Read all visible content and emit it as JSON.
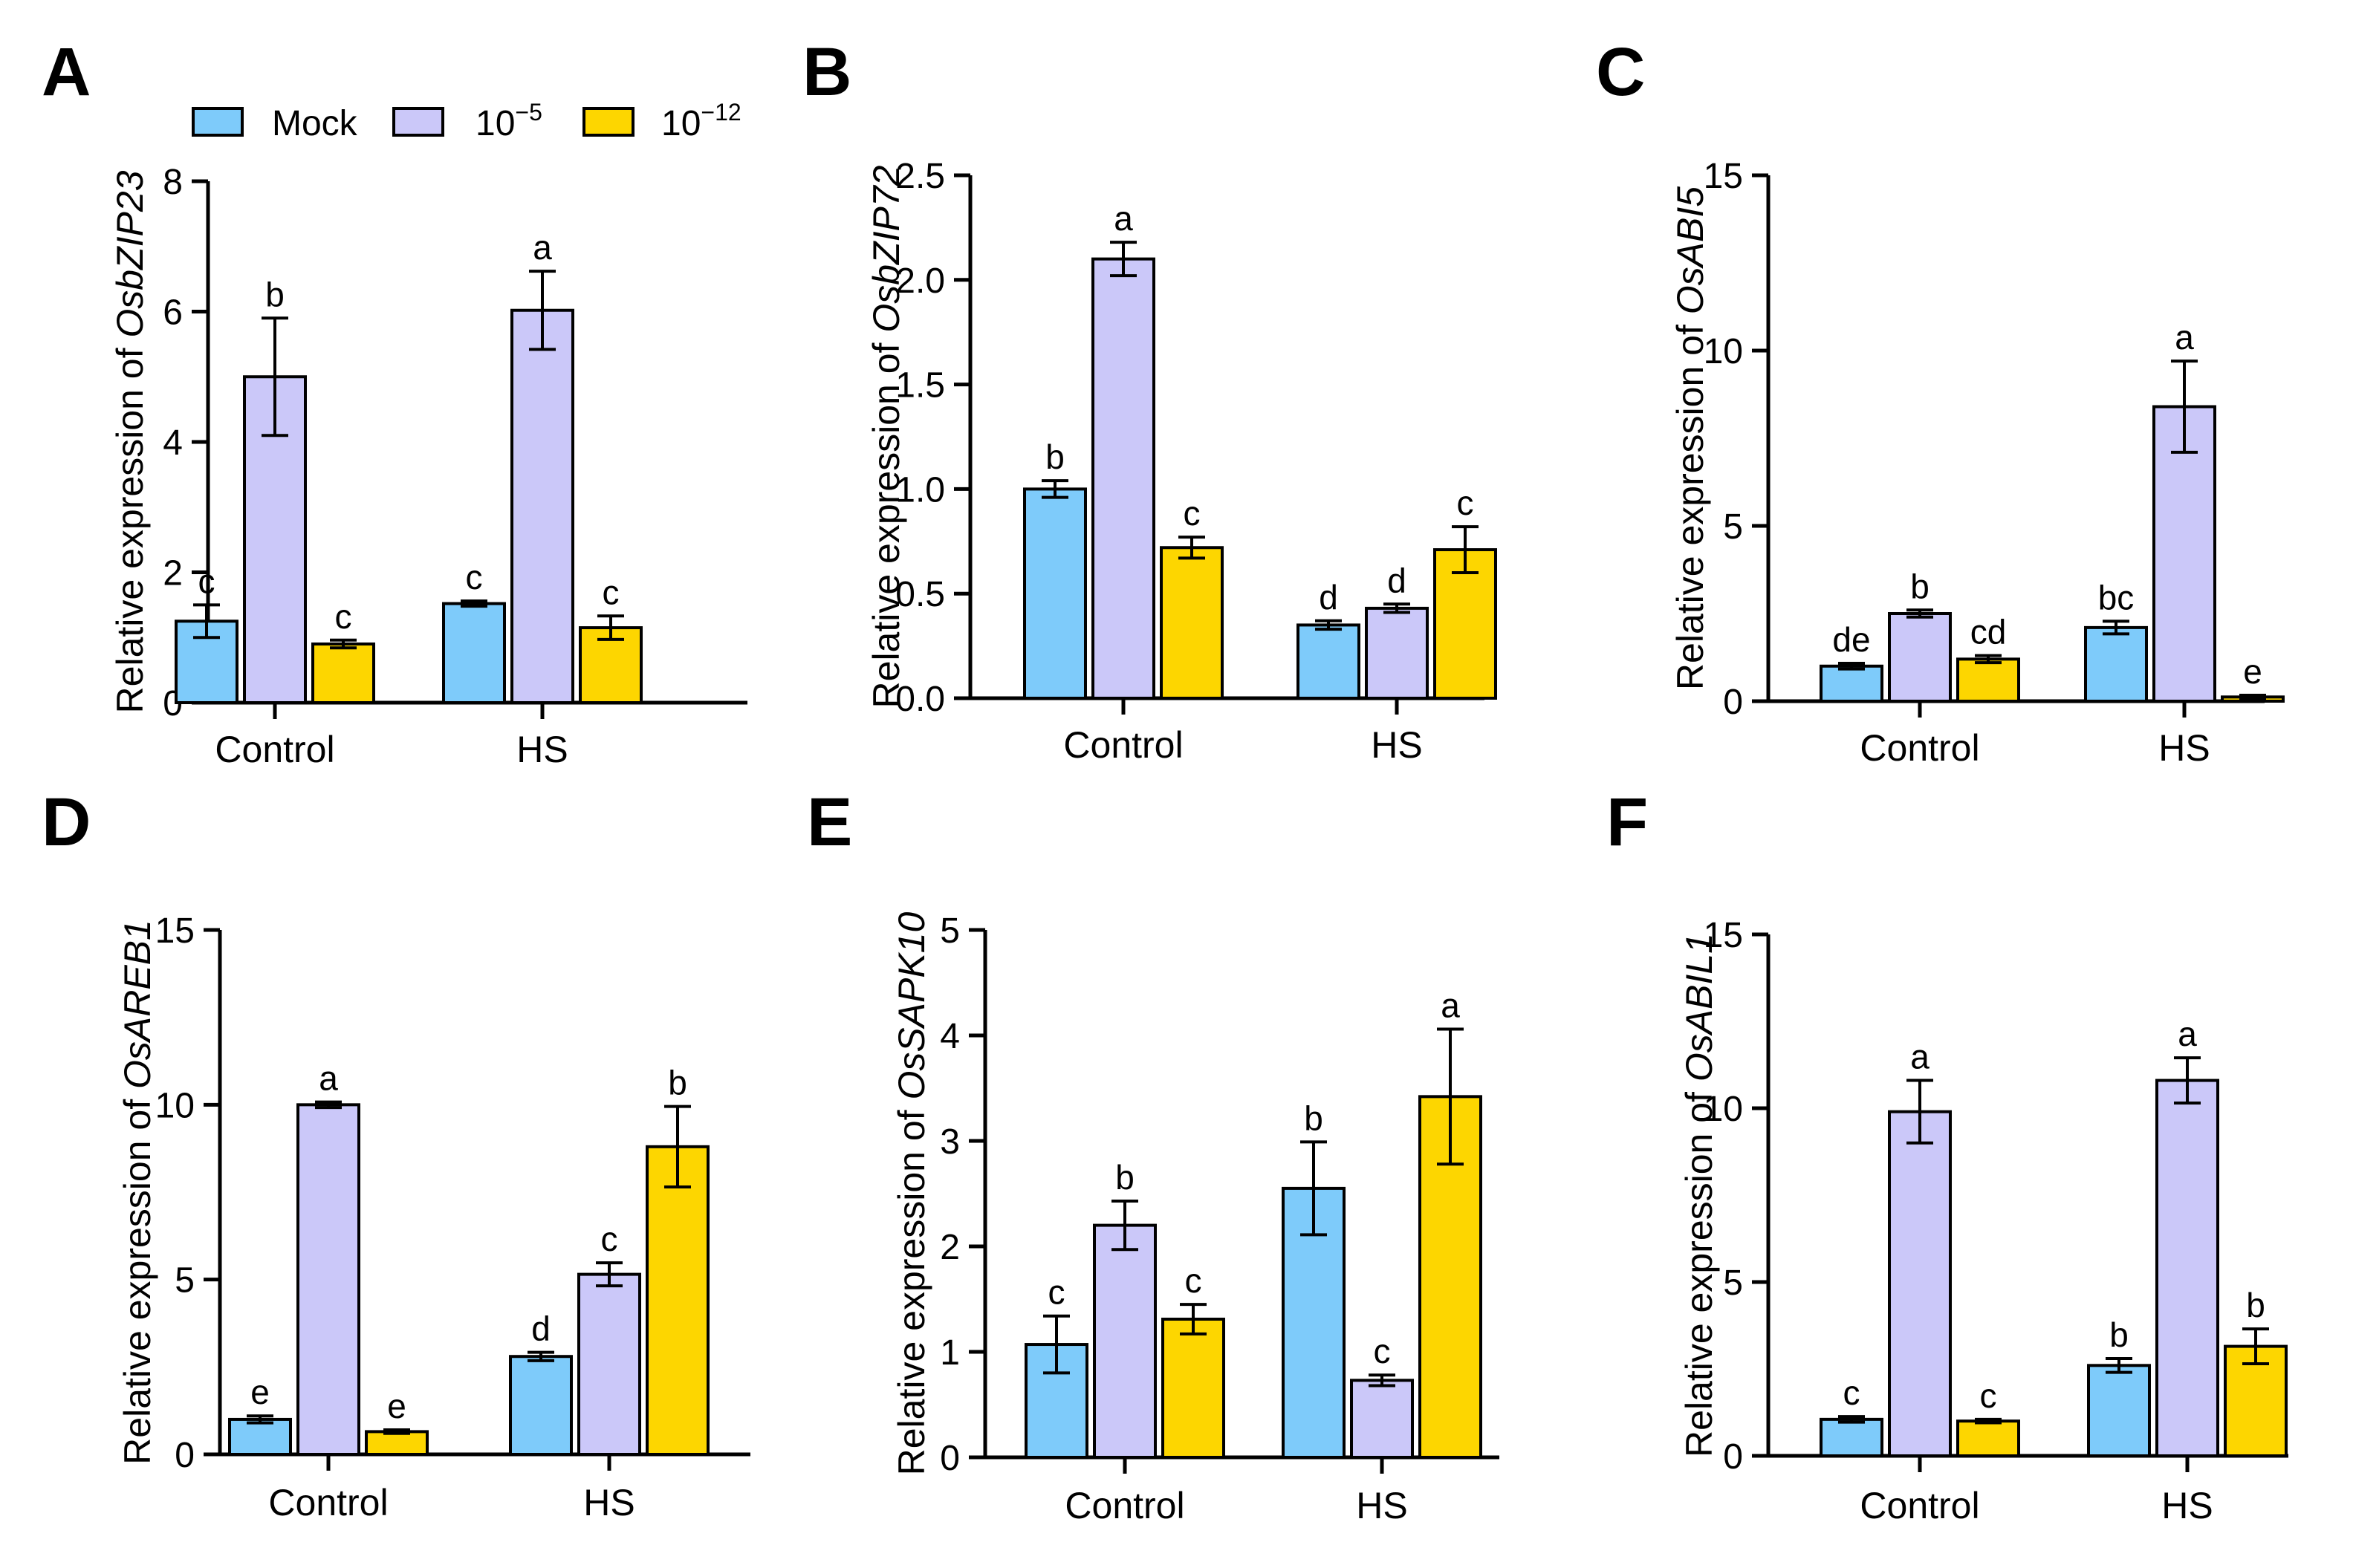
{
  "colors": {
    "Mock": "#7ECBFA",
    "1e-5": "#CBC8F9",
    "1e-12": "#FDD600",
    "axis": "#000000"
  },
  "legend": {
    "items": [
      {
        "key": "Mock",
        "label": "Mock"
      },
      {
        "key": "1e-5",
        "base": "10",
        "sup": "−5"
      },
      {
        "key": "1e-12",
        "base": "10",
        "sup": "−12"
      }
    ]
  },
  "chart_data": [
    {
      "panel": "A",
      "type": "bar",
      "ylabel_prefix": "Relative expression of ",
      "gene": "OsbZIP23",
      "categories": [
        "Control",
        "HS"
      ],
      "ylim": [
        0,
        8
      ],
      "yticks": [
        "0",
        "2",
        "4",
        "6",
        "8"
      ],
      "series": [
        {
          "name": "Mock",
          "values": [
            1.25,
            1.52
          ],
          "errors": [
            0.25,
            0.04
          ],
          "letters": [
            "c",
            "c"
          ]
        },
        {
          "name": "10−5",
          "values": [
            5.0,
            6.02
          ],
          "errors": [
            0.9,
            0.6
          ],
          "letters": [
            "b",
            "a"
          ]
        },
        {
          "name": "10−12",
          "values": [
            0.9,
            1.15
          ],
          "errors": [
            0.06,
            0.18
          ],
          "letters": [
            "c",
            "c"
          ]
        }
      ]
    },
    {
      "panel": "B",
      "type": "bar",
      "ylabel_prefix": "Relative expression of ",
      "gene": "OsbZIP72",
      "categories": [
        "Control",
        "HS"
      ],
      "ylim": [
        0,
        2.5
      ],
      "yticks": [
        "0.0",
        "0.5",
        "1.0",
        "1.5",
        "2.0",
        "2.5"
      ],
      "series": [
        {
          "name": "Mock",
          "values": [
            1.0,
            0.35
          ],
          "errors": [
            0.04,
            0.02
          ],
          "letters": [
            "b",
            "d"
          ]
        },
        {
          "name": "10−5",
          "values": [
            2.1,
            0.43
          ],
          "errors": [
            0.08,
            0.02
          ],
          "letters": [
            "a",
            "d"
          ]
        },
        {
          "name": "10−12",
          "values": [
            0.72,
            0.71
          ],
          "errors": [
            0.05,
            0.11
          ],
          "letters": [
            "c",
            "c"
          ]
        }
      ]
    },
    {
      "panel": "C",
      "type": "bar",
      "ylabel_prefix": "Relative expression of ",
      "gene": "OsABI5",
      "categories": [
        "Control",
        "HS"
      ],
      "ylim": [
        0,
        15
      ],
      "yticks": [
        "0",
        "5",
        "10",
        "15"
      ],
      "series": [
        {
          "name": "Mock",
          "values": [
            1.0,
            2.1
          ],
          "errors": [
            0.08,
            0.18
          ],
          "letters": [
            "de",
            "bc"
          ]
        },
        {
          "name": "10−5",
          "values": [
            2.5,
            8.4
          ],
          "errors": [
            0.1,
            1.3
          ],
          "letters": [
            "b",
            "a"
          ]
        },
        {
          "name": "10−12",
          "values": [
            1.2,
            0.12
          ],
          "errors": [
            0.1,
            0.05
          ],
          "letters": [
            "cd",
            "e"
          ]
        }
      ]
    },
    {
      "panel": "D",
      "type": "bar",
      "ylabel_prefix": "Relative expression of ",
      "gene": "OsAREB1",
      "categories": [
        "Control",
        "HS"
      ],
      "ylim": [
        0,
        15
      ],
      "yticks": [
        "0",
        "5",
        "10",
        "15"
      ],
      "series": [
        {
          "name": "Mock",
          "values": [
            1.0,
            2.8
          ],
          "errors": [
            0.1,
            0.12
          ],
          "letters": [
            "e",
            "d"
          ]
        },
        {
          "name": "10−5",
          "values": [
            10.0,
            5.15
          ],
          "errors": [
            0.08,
            0.33
          ],
          "letters": [
            "a",
            "c"
          ]
        },
        {
          "name": "10−12",
          "values": [
            0.65,
            8.8
          ],
          "errors": [
            0.05,
            1.15
          ],
          "letters": [
            "e",
            "b"
          ]
        }
      ]
    },
    {
      "panel": "E",
      "type": "bar",
      "ylabel_prefix": "Relative expression of ",
      "gene": "OsSAPK10",
      "categories": [
        "Control",
        "HS"
      ],
      "ylim": [
        0,
        5
      ],
      "yticks": [
        "0",
        "1",
        "2",
        "3",
        "4",
        "5"
      ],
      "series": [
        {
          "name": "Mock",
          "values": [
            1.07,
            2.55
          ],
          "errors": [
            0.27,
            0.44
          ],
          "letters": [
            "c",
            "b"
          ]
        },
        {
          "name": "10−5",
          "values": [
            2.2,
            0.73
          ],
          "errors": [
            0.23,
            0.05
          ],
          "letters": [
            "b",
            "c"
          ]
        },
        {
          "name": "10−12",
          "values": [
            1.31,
            3.42
          ],
          "errors": [
            0.14,
            0.64
          ],
          "letters": [
            "c",
            "a"
          ]
        }
      ]
    },
    {
      "panel": "F",
      "type": "bar",
      "ylabel_prefix": "Relative expression of ",
      "gene": "OsABIL1",
      "categories": [
        "Control",
        "HS"
      ],
      "ylim": [
        0,
        15
      ],
      "yticks": [
        "0",
        "5",
        "10",
        "15"
      ],
      "series": [
        {
          "name": "Mock",
          "values": [
            1.05,
            2.6
          ],
          "errors": [
            0.08,
            0.2
          ],
          "letters": [
            "c",
            "b"
          ]
        },
        {
          "name": "10−5",
          "values": [
            9.9,
            10.8
          ],
          "errors": [
            0.9,
            0.65
          ],
          "letters": [
            "a",
            "a"
          ]
        },
        {
          "name": "10−12",
          "values": [
            1.0,
            3.15
          ],
          "errors": [
            0.05,
            0.5
          ],
          "letters": [
            "c",
            "b"
          ]
        }
      ]
    }
  ]
}
